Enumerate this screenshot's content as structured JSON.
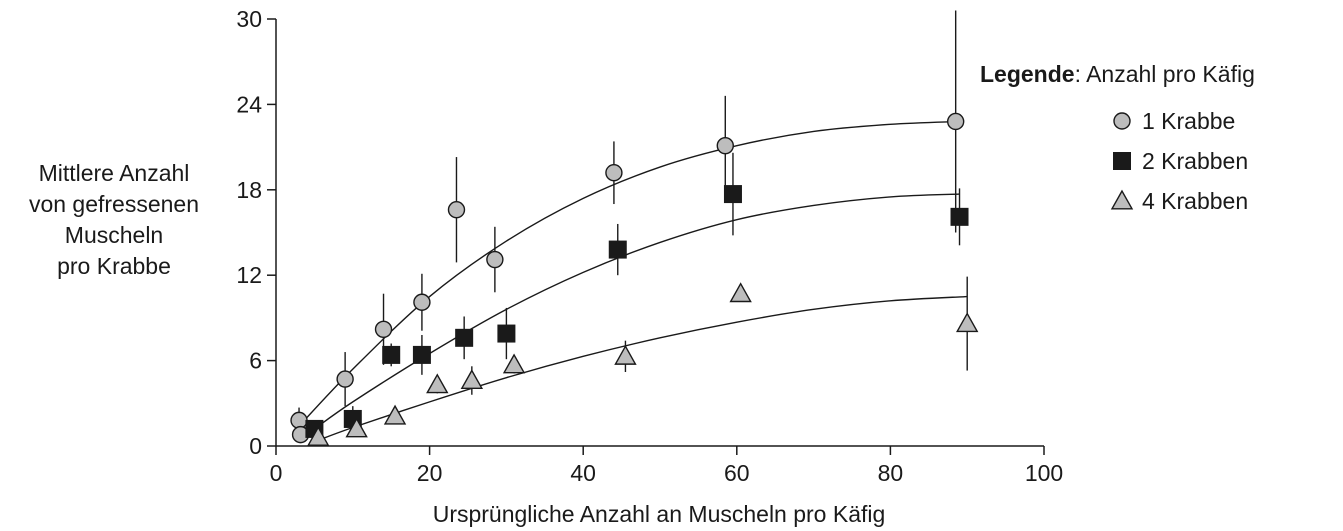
{
  "chart_data": {
    "type": "scatter",
    "xlabel": "Ursprüngliche Anzahl an Muscheln pro Käfig",
    "ylabel_lines": [
      "Mittlere Anzahl",
      "von gefressenen",
      "Muscheln",
      "pro Krabbe"
    ],
    "xlim": [
      0,
      100
    ],
    "ylim": [
      0,
      30
    ],
    "xticks": [
      0,
      20,
      40,
      60,
      80,
      100
    ],
    "yticks": [
      0,
      6,
      12,
      18,
      24,
      30
    ],
    "legend": {
      "placement": "right",
      "title_bold": "Legende",
      "title_rest": ": Anzahl pro Käfig"
    },
    "colors": {
      "marker_gray": "#bdbdbd",
      "marker_black": "#1a1a1a",
      "line": "#1a1a1a"
    },
    "series": [
      {
        "name": "1 Krabbe",
        "marker": "circle",
        "points": [
          {
            "x": 3,
            "y": 1.8,
            "err": 0.9
          },
          {
            "x": 3.2,
            "y": 0.8,
            "err": 0.4
          },
          {
            "x": 9,
            "y": 4.7,
            "err": 1.9
          },
          {
            "x": 14,
            "y": 8.2,
            "err": 2.5
          },
          {
            "x": 19,
            "y": 10.1,
            "err": 2.0
          },
          {
            "x": 23.5,
            "y": 16.6,
            "err": 3.7
          },
          {
            "x": 28.5,
            "y": 13.1,
            "err": 2.3
          },
          {
            "x": 44,
            "y": 19.2,
            "err": 2.2
          },
          {
            "x": 58.5,
            "y": 21.1,
            "err": 3.5
          },
          {
            "x": 88.5,
            "y": 22.8,
            "err": 7.8
          }
        ],
        "fit": [
          [
            3,
            1.4
          ],
          [
            10,
            5.4
          ],
          [
            20,
            10.5
          ],
          [
            30,
            14.4
          ],
          [
            40,
            17.4
          ],
          [
            50,
            19.6
          ],
          [
            60,
            21.1
          ],
          [
            70,
            22.1
          ],
          [
            80,
            22.6
          ],
          [
            89,
            22.8
          ]
        ]
      },
      {
        "name": "2 Krabben",
        "marker": "square",
        "points": [
          {
            "x": 5,
            "y": 1.2,
            "err": 0.5
          },
          {
            "x": 10,
            "y": 1.9,
            "err": 0.9
          },
          {
            "x": 15,
            "y": 6.4,
            "err": 0.8
          },
          {
            "x": 19,
            "y": 6.4,
            "err": 1.4
          },
          {
            "x": 24.5,
            "y": 7.6,
            "err": 1.5
          },
          {
            "x": 30,
            "y": 7.9,
            "err": 1.8
          },
          {
            "x": 44.5,
            "y": 13.8,
            "err": 1.8
          },
          {
            "x": 59.5,
            "y": 17.7,
            "err": 2.9
          },
          {
            "x": 89,
            "y": 16.1,
            "err": 2.0
          }
        ],
        "fit": [
          [
            5,
            1.2
          ],
          [
            10,
            3.1
          ],
          [
            20,
            6.5
          ],
          [
            30,
            9.6
          ],
          [
            40,
            12.2
          ],
          [
            50,
            14.3
          ],
          [
            60,
            15.9
          ],
          [
            70,
            16.9
          ],
          [
            80,
            17.5
          ],
          [
            89,
            17.7
          ]
        ]
      },
      {
        "name": "4 Krabben",
        "marker": "triangle",
        "points": [
          {
            "x": 5.5,
            "y": 0.6,
            "err": 0.3
          },
          {
            "x": 10.5,
            "y": 1.2,
            "err": 0.5
          },
          {
            "x": 15.5,
            "y": 2.1,
            "err": 0.4
          },
          {
            "x": 21,
            "y": 4.3,
            "err": 0.6
          },
          {
            "x": 25.5,
            "y": 4.6,
            "err": 1.0
          },
          {
            "x": 31,
            "y": 5.7,
            "err": 0.6
          },
          {
            "x": 45.5,
            "y": 6.3,
            "err": 1.1
          },
          {
            "x": 60.5,
            "y": 10.7,
            "err": 0.5
          },
          {
            "x": 90,
            "y": 8.6,
            "err": 3.3
          }
        ],
        "fit": [
          [
            5,
            0.3
          ],
          [
            10,
            1.3
          ],
          [
            20,
            3.1
          ],
          [
            30,
            4.8
          ],
          [
            40,
            6.3
          ],
          [
            50,
            7.6
          ],
          [
            60,
            8.7
          ],
          [
            70,
            9.6
          ],
          [
            80,
            10.2
          ],
          [
            90,
            10.5
          ]
        ]
      }
    ]
  }
}
